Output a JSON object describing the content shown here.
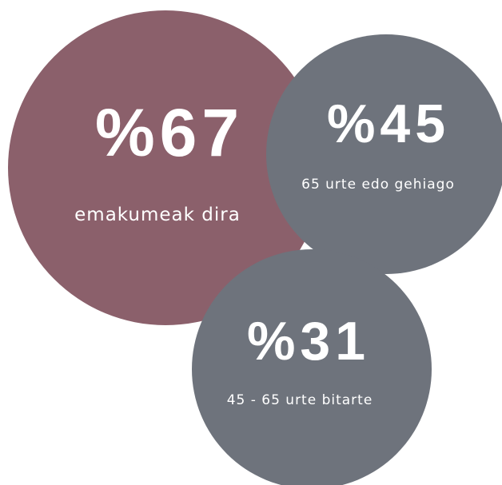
{
  "items": [
    {
      "value": "%67",
      "label": "emakumeak dira"
    },
    {
      "value": "%45",
      "label": "65 urte edo gehiago"
    },
    {
      "value": "%31",
      "label": "45 - 65 urte bitarte"
    }
  ]
}
